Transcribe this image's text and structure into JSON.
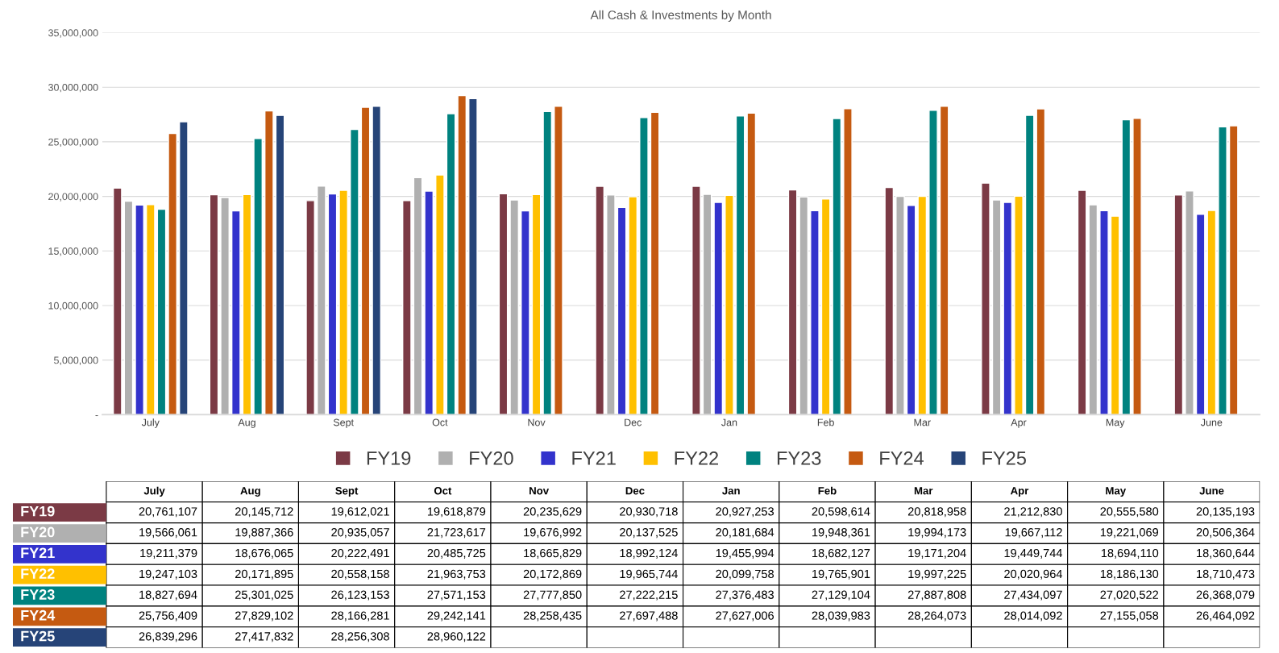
{
  "chart_data": {
    "type": "bar",
    "title": "All Cash & Investments by Month",
    "categories": [
      "July",
      "Aug",
      "Sept",
      "Oct",
      "Nov",
      "Dec",
      "Jan",
      "Feb",
      "Mar",
      "Apr",
      "May",
      "June"
    ],
    "series": [
      {
        "name": "FY19",
        "color": "#7b3a45",
        "values": [
          20761107,
          20145712,
          19612021,
          19618879,
          20235629,
          20930718,
          20927253,
          20598614,
          20818958,
          21212830,
          20555580,
          20135193
        ],
        "value_labels": [
          "20,761,107",
          "20,145,712",
          "19,612,021",
          "19,618,879",
          "20,235,629",
          "20,930,718",
          "20,927,253",
          "20,598,614",
          "20,818,958",
          "21,212,830",
          "20,555,580",
          "20,135,193"
        ]
      },
      {
        "name": "FY20",
        "color": "#b0b0b0",
        "values": [
          19566061,
          19887366,
          20935057,
          21723617,
          19676992,
          20137525,
          20181684,
          19948361,
          19994173,
          19667112,
          19221069,
          20506364
        ],
        "value_labels": [
          "19,566,061",
          "19,887,366",
          "20,935,057",
          "21,723,617",
          "19,676,992",
          "20,137,525",
          "20,181,684",
          "19,948,361",
          "19,994,173",
          "19,667,112",
          "19,221,069",
          "20,506,364"
        ]
      },
      {
        "name": "FY21",
        "color": "#3333cc",
        "values": [
          19211379,
          18676065,
          20222491,
          20485725,
          18665829,
          18992124,
          19455994,
          18682127,
          19171204,
          19449744,
          18694110,
          18360644
        ],
        "value_labels": [
          "19,211,379",
          "18,676,065",
          "20,222,491",
          "20,485,725",
          "18,665,829",
          "18,992,124",
          "19,455,994",
          "18,682,127",
          "19,171,204",
          "19,449,744",
          "18,694,110",
          "18,360,644"
        ]
      },
      {
        "name": "FY22",
        "color": "#ffc000",
        "values": [
          19247103,
          20171895,
          20558158,
          21963753,
          20172869,
          19965744,
          20099758,
          19765901,
          19997225,
          20020964,
          18186130,
          18710473
        ],
        "value_labels": [
          "19,247,103",
          "20,171,895",
          "20,558,158",
          "21,963,753",
          "20,172,869",
          "19,965,744",
          "20,099,758",
          "19,765,901",
          "19,997,225",
          "20,020,964",
          "18,186,130",
          "18,710,473"
        ]
      },
      {
        "name": "FY23",
        "color": "#00827f",
        "values": [
          18827694,
          25301025,
          26123153,
          27571153,
          27777850,
          27222215,
          27376483,
          27129104,
          27887808,
          27434097,
          27020522,
          26368079
        ],
        "value_labels": [
          "18,827,694",
          "25,301,025",
          "26,123,153",
          "27,571,153",
          "27,777,850",
          "27,222,215",
          "27,376,483",
          "27,129,104",
          "27,887,808",
          "27,434,097",
          "27,020,522",
          "26,368,079"
        ]
      },
      {
        "name": "FY24",
        "color": "#c55a11",
        "values": [
          25756409,
          27829102,
          28166281,
          29242141,
          28258435,
          27697488,
          27627006,
          28039983,
          28264073,
          28014092,
          27155058,
          26464092
        ],
        "value_labels": [
          "25,756,409",
          "27,829,102",
          "28,166,281",
          "29,242,141",
          "28,258,435",
          "27,697,488",
          "27,627,006",
          "28,039,983",
          "28,264,073",
          "28,014,092",
          "27,155,058",
          "26,464,092"
        ]
      },
      {
        "name": "FY25",
        "color": "#264478",
        "values": [
          26839296,
          27417832,
          28256308,
          28960122,
          null,
          null,
          null,
          null,
          null,
          null,
          null,
          null
        ],
        "value_labels": [
          "26,839,296",
          "27,417,832",
          "28,256,308",
          "28,960,122",
          null,
          null,
          null,
          null,
          null,
          null,
          null,
          null
        ]
      }
    ],
    "ylim": [
      0,
      35000000
    ],
    "yticks": [
      {
        "value": 0,
        "label": "-"
      },
      {
        "value": 5000000,
        "label": "5,000,000"
      },
      {
        "value": 10000000,
        "label": "10,000,000"
      },
      {
        "value": 15000000,
        "label": "15,000,000"
      },
      {
        "value": 20000000,
        "label": "20,000,000"
      },
      {
        "value": 25000000,
        "label": "25,000,000"
      },
      {
        "value": 30000000,
        "label": "30,000,000"
      },
      {
        "value": 35000000,
        "label": "35,000,000"
      }
    ],
    "grid": "y",
    "legend": "bottom"
  }
}
